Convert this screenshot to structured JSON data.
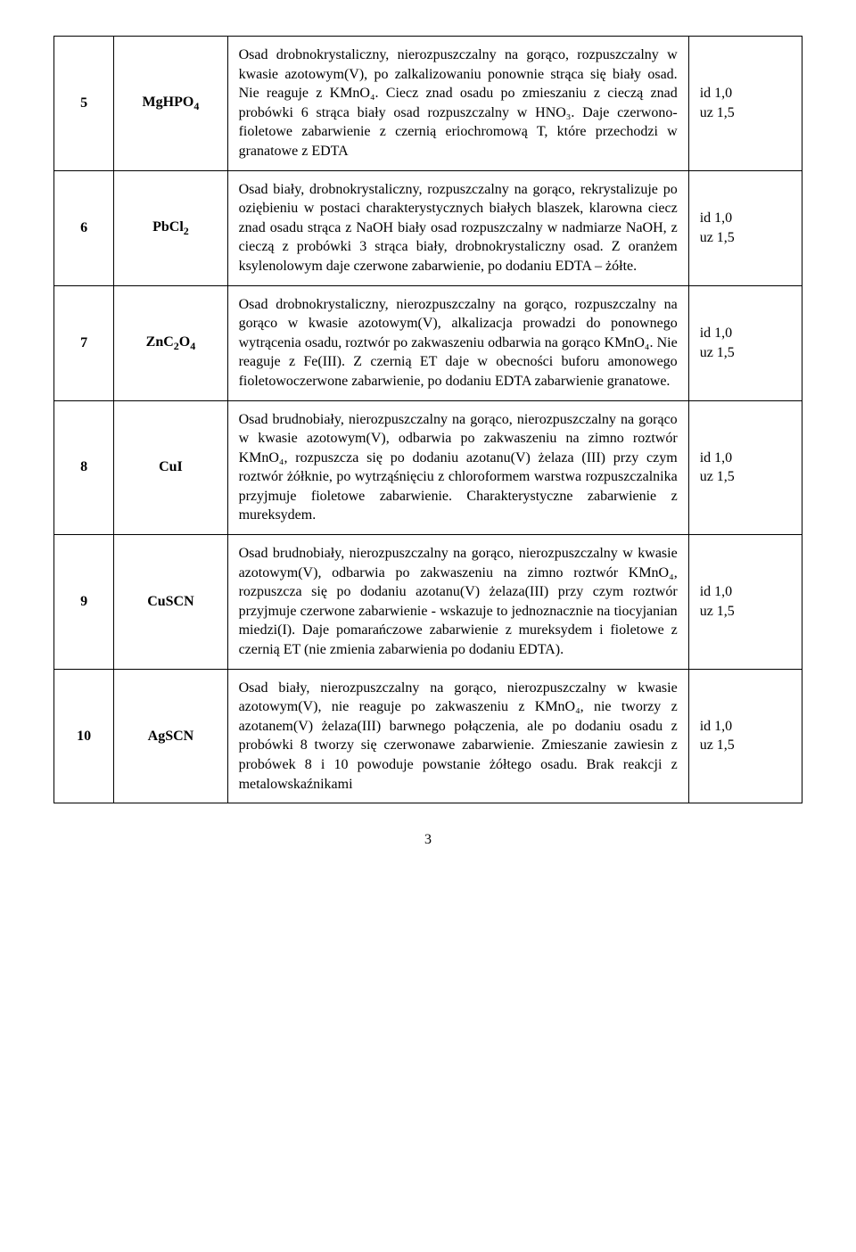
{
  "rows": [
    {
      "num": "5",
      "formula_html": "MgHPO<sub>4</sub>",
      "desc": "Osad drobnokrystaliczny, nierozpuszczalny na gorąco, rozpuszczalny w kwasie azotowym(V), po zalkalizowaniu ponownie strąca się biały osad. Nie reaguje z KMnO₄. Ciecz znad osadu po zmieszaniu z cieczą znad probówki 6 strąca biały osad rozpuszczalny w HNO₃. Daje czerwono-fioletowe zabarwienie z czernią eriochromową T, które przechodzi w granatowe z EDTA",
      "id": "id 1,0",
      "uz": "uz 1,5"
    },
    {
      "num": "6",
      "formula_html": "PbCl<sub>2</sub>",
      "desc": "Osad biały, drobnokrystaliczny, rozpuszczalny na gorąco, rekrystalizuje po oziębieniu w postaci charakterystycznych białych blaszek, klarowna ciecz znad osadu strąca z NaOH biały osad rozpuszczalny w nadmiarze NaOH, z cieczą z probówki 3 strąca biały, drobnokrystaliczny osad. Z oranżem ksylenolowym daje czerwone zabarwienie, po dodaniu EDTA – żółte.",
      "id": "id 1,0",
      "uz": "uz 1,5"
    },
    {
      "num": "7",
      "formula_html": "ZnC<sub>2</sub>O<sub>4</sub>",
      "desc": "Osad drobnokrystaliczny, nierozpuszczalny na gorąco, rozpuszczalny na gorąco w kwasie azotowym(V), alkalizacja prowadzi do ponownego wytrącenia osadu, roztwór po zakwaszeniu odbarwia na gorąco KMnO₄. Nie reaguje z Fe(III). Z czernią ET daje w obecności buforu amonowego fioletowoczerwone zabarwienie, po dodaniu EDTA zabarwienie granatowe.",
      "id": "id 1,0",
      "uz": "uz 1,5"
    },
    {
      "num": "8",
      "formula_html": "CuI",
      "desc": "Osad brudnobiały, nierozpuszczalny na gorąco, nierozpuszczalny na gorąco w kwasie azotowym(V), odbarwia po zakwaszeniu na zimno roztwór KMnO₄, rozpuszcza się po dodaniu azotanu(V) żelaza (III) przy czym roztwór żółknie, po wytrząśnięciu z chloroformem warstwa rozpuszczalnika przyjmuje fioletowe zabarwienie. Charakterystyczne zabarwienie z mureksydem.",
      "id": "id 1,0",
      "uz": "uz 1,5"
    },
    {
      "num": "9",
      "formula_html": "CuSCN",
      "desc": "Osad brudnobiały, nierozpuszczalny na gorąco, nierozpuszczalny w kwasie azotowym(V), odbarwia po zakwaszeniu na zimno roztwór KMnO₄, rozpuszcza się po dodaniu azotanu(V) żelaza(III) przy czym roztwór przyjmuje czerwone zabarwienie - wskazuje to jednoznacznie na tiocyjanian miedzi(I). Daje pomarańczowe zabarwienie z mureksydem i fioletowe z czernią ET (nie zmienia zabarwienia po dodaniu EDTA).",
      "id": "id 1,0",
      "uz": "uz 1,5",
      "justify": true
    },
    {
      "num": "10",
      "formula_html": "AgSCN",
      "desc": "Osad biały, nierozpuszczalny na gorąco, nierozpuszczalny w kwasie azotowym(V), nie reaguje po zakwaszeniu z KMnO₄, nie tworzy z azotanem(V) żelaza(III) barwnego połączenia, ale po dodaniu osadu z probówki 8 tworzy się czerwonawe zabarwienie. Zmieszanie zawiesin z probówek 8 i 10 powoduje powstanie żółtego osadu. Brak reakcji z metalowskaźnikami",
      "id": "id 1,0",
      "uz": "uz 1,5"
    }
  ],
  "page_number": "3"
}
